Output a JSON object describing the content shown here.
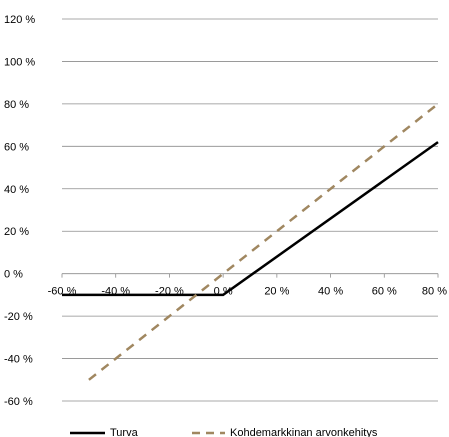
{
  "chart_data": {
    "type": "line",
    "title": "",
    "xlabel": "",
    "ylabel": "",
    "xlim": [
      -60,
      80
    ],
    "ylim": [
      -60,
      120
    ],
    "x_ticks": [
      -60,
      -40,
      -20,
      0,
      20,
      40,
      60,
      80
    ],
    "y_ticks": [
      -60,
      -40,
      -20,
      0,
      20,
      40,
      60,
      80,
      100,
      120
    ],
    "x_tick_labels": [
      "-60 %",
      "-40 %",
      "-20 %",
      "0 %",
      "20 %",
      "40 %",
      "60 %",
      "80 %"
    ],
    "y_tick_labels": [
      "-60 %",
      "-40 %",
      "-20 %",
      "0 %",
      "20 %",
      "40 %",
      "60 %",
      "80 %",
      "100 %",
      "120 %"
    ],
    "grid": "horizontal",
    "legend_position": "bottom",
    "series": [
      {
        "name": "Turva",
        "style": "solid",
        "color": "#000000",
        "points": [
          [
            -60,
            -10
          ],
          [
            0,
            -10
          ],
          [
            80,
            62
          ]
        ]
      },
      {
        "name": "Kohdemarkkinan arvonkehitys",
        "style": "dashed",
        "color": "#a08760",
        "points": [
          [
            -50,
            -50
          ],
          [
            80,
            80
          ]
        ]
      }
    ]
  }
}
